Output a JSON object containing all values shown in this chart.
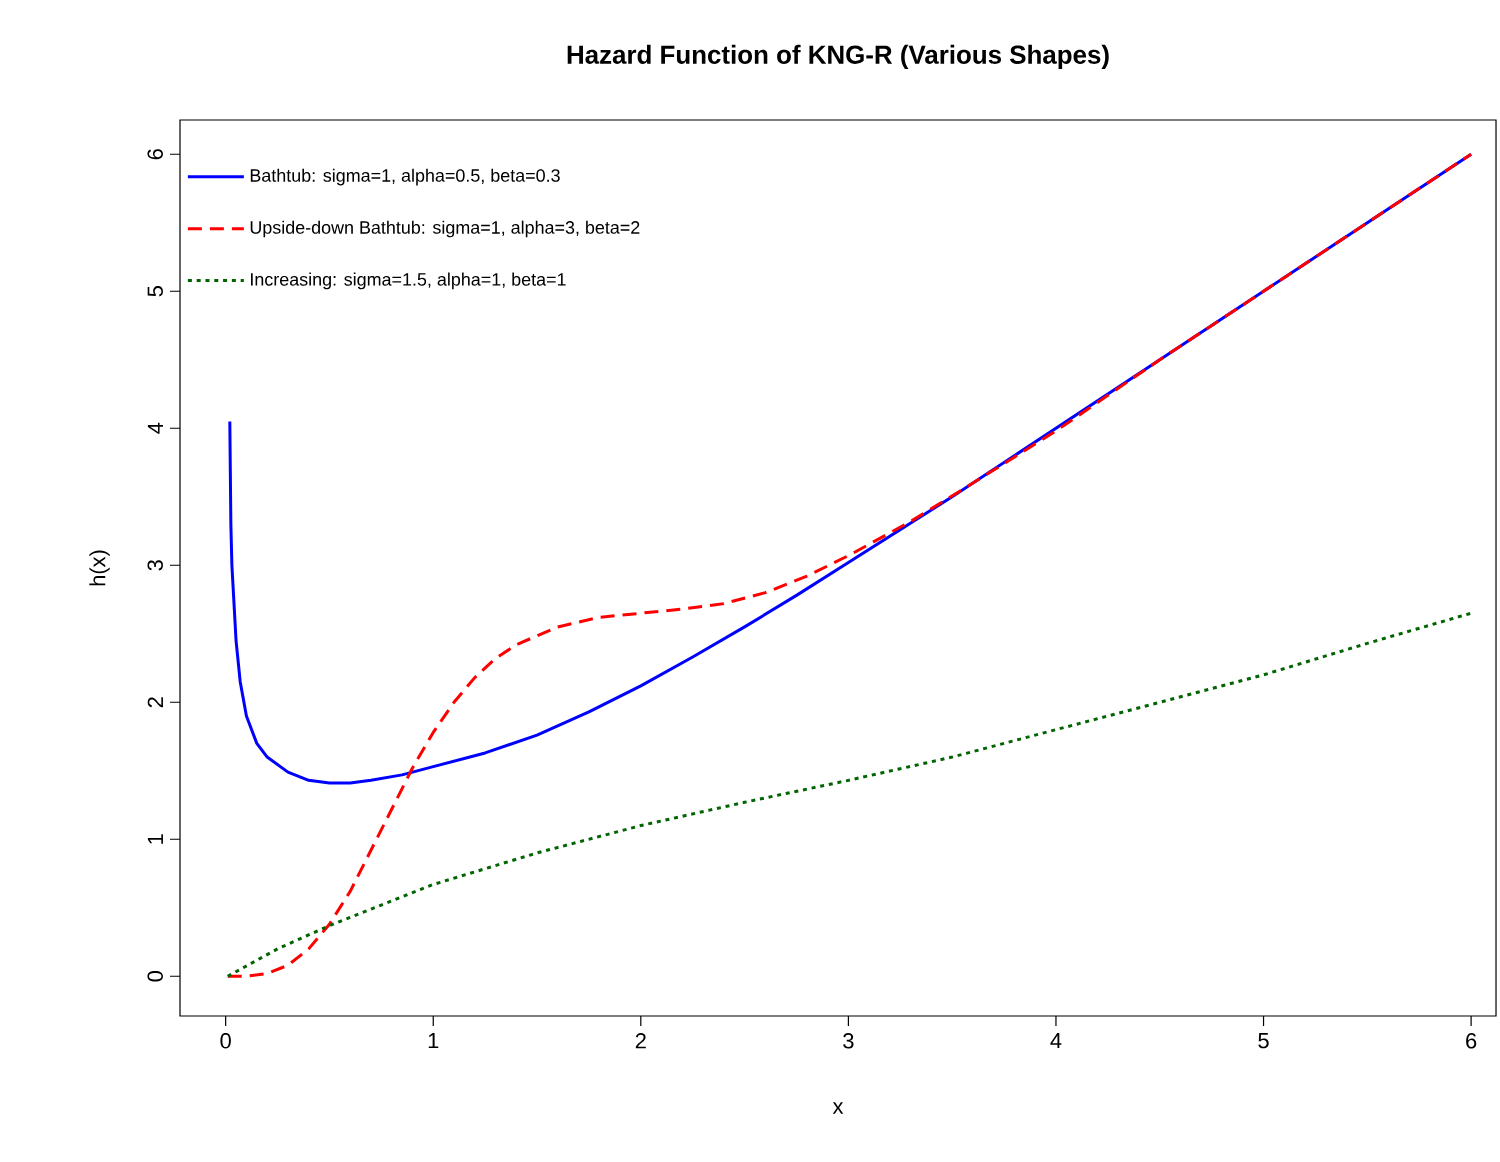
{
  "chart_data": {
    "type": "line",
    "title": "Hazard Function of KNG-R (Various Shapes)",
    "xlabel": "x",
    "ylabel": "h(x)",
    "xlim": [
      -0.22,
      6.12
    ],
    "ylim": [
      -0.29,
      6.25
    ],
    "xticks": [
      0,
      1,
      2,
      3,
      4,
      5,
      6
    ],
    "yticks": [
      0,
      1,
      2,
      3,
      4,
      5,
      6
    ],
    "grid": false,
    "legend": "top left",
    "marker": "none",
    "series": [
      {
        "name": "Bathtub: sigma=1, alpha=0.5, beta=0.3",
        "color": "#0000ff",
        "line_style": "solid",
        "x": [
          0.02,
          0.025,
          0.03,
          0.05,
          0.07,
          0.1,
          0.15,
          0.2,
          0.3,
          0.4,
          0.5,
          0.6,
          0.7,
          0.85,
          1.0,
          1.25,
          1.5,
          1.75,
          2.0,
          2.25,
          2.5,
          2.75,
          3.0,
          3.5,
          4.0,
          4.5,
          5.0,
          5.5,
          6.0
        ],
        "values": [
          4.05,
          3.3,
          3.0,
          2.45,
          2.15,
          1.9,
          1.7,
          1.6,
          1.49,
          1.43,
          1.41,
          1.41,
          1.43,
          1.47,
          1.53,
          1.63,
          1.76,
          1.93,
          2.12,
          2.33,
          2.55,
          2.78,
          3.02,
          3.5,
          4.0,
          4.5,
          5.0,
          5.5,
          6.0
        ]
      },
      {
        "name": "Upside-down Bathtub: sigma=1, alpha=3, beta=2",
        "color": "#ff0000",
        "line_style": "dashed",
        "x": [
          0.01,
          0.1,
          0.2,
          0.3,
          0.4,
          0.5,
          0.6,
          0.7,
          0.8,
          0.9,
          1.0,
          1.1,
          1.2,
          1.3,
          1.4,
          1.6,
          1.8,
          2.0,
          2.2,
          2.4,
          2.6,
          2.8,
          3.0,
          3.3,
          3.6,
          4.0,
          4.5,
          5.0,
          5.5,
          6.0
        ],
        "values": [
          0.0,
          0.0,
          0.02,
          0.08,
          0.2,
          0.38,
          0.62,
          0.92,
          1.22,
          1.52,
          1.78,
          2.0,
          2.18,
          2.32,
          2.42,
          2.55,
          2.62,
          2.65,
          2.68,
          2.72,
          2.8,
          2.92,
          3.07,
          3.32,
          3.6,
          3.98,
          4.5,
          5.0,
          5.5,
          6.0
        ]
      },
      {
        "name": "Increasing: sigma=1.5, alpha=1, beta=1",
        "color": "#006400",
        "line_style": "dotted",
        "x": [
          0.01,
          0.25,
          0.5,
          0.75,
          1.0,
          1.5,
          2.0,
          2.5,
          3.0,
          3.5,
          4.0,
          4.5,
          5.0,
          5.5,
          6.0
        ],
        "values": [
          0.0,
          0.2,
          0.37,
          0.52,
          0.67,
          0.9,
          1.1,
          1.27,
          1.43,
          1.6,
          1.8,
          2.0,
          2.2,
          2.43,
          2.65
        ]
      }
    ]
  }
}
